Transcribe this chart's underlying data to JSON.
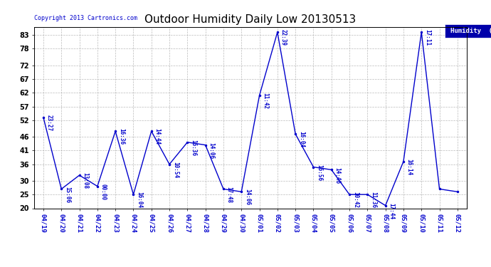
{
  "title": "Outdoor Humidity Daily Low 20130513",
  "copyright": "Copyright 2013 Cartronics.com",
  "legend_label": "Humidity  (%)",
  "line_color": "#0000cc",
  "background_color": "#ffffff",
  "plot_bg_color": "#ffffff",
  "grid_color": "#aaaaaa",
  "ylim": [
    20,
    86
  ],
  "yticks": [
    20,
    25,
    30,
    36,
    41,
    46,
    52,
    57,
    62,
    67,
    72,
    78,
    83
  ],
  "dates": [
    "04/19",
    "04/20",
    "04/21",
    "04/22",
    "04/23",
    "04/24",
    "04/25",
    "04/26",
    "04/27",
    "04/28",
    "04/29",
    "04/30",
    "05/01",
    "05/02",
    "05/03",
    "05/04",
    "05/05",
    "05/06",
    "05/07",
    "05/08",
    "05/09",
    "05/10",
    "05/11",
    "05/12"
  ],
  "values": [
    53,
    27,
    32,
    28,
    48,
    25,
    48,
    36,
    44,
    43,
    27,
    26,
    61,
    84,
    47,
    35,
    34,
    25,
    25,
    21,
    37,
    84,
    27,
    26
  ],
  "time_labels": [
    "23:27",
    "15:06",
    "13:08",
    "00:00",
    "16:36",
    "16:04",
    "14:44",
    "10:54",
    "16:36",
    "14:06",
    "17:48",
    "14:06",
    "11:42",
    "22:39",
    "16:04",
    "16:56",
    "14:46",
    "10:42",
    "11:36",
    "17:44",
    "16:14",
    "17:11",
    "",
    ""
  ]
}
